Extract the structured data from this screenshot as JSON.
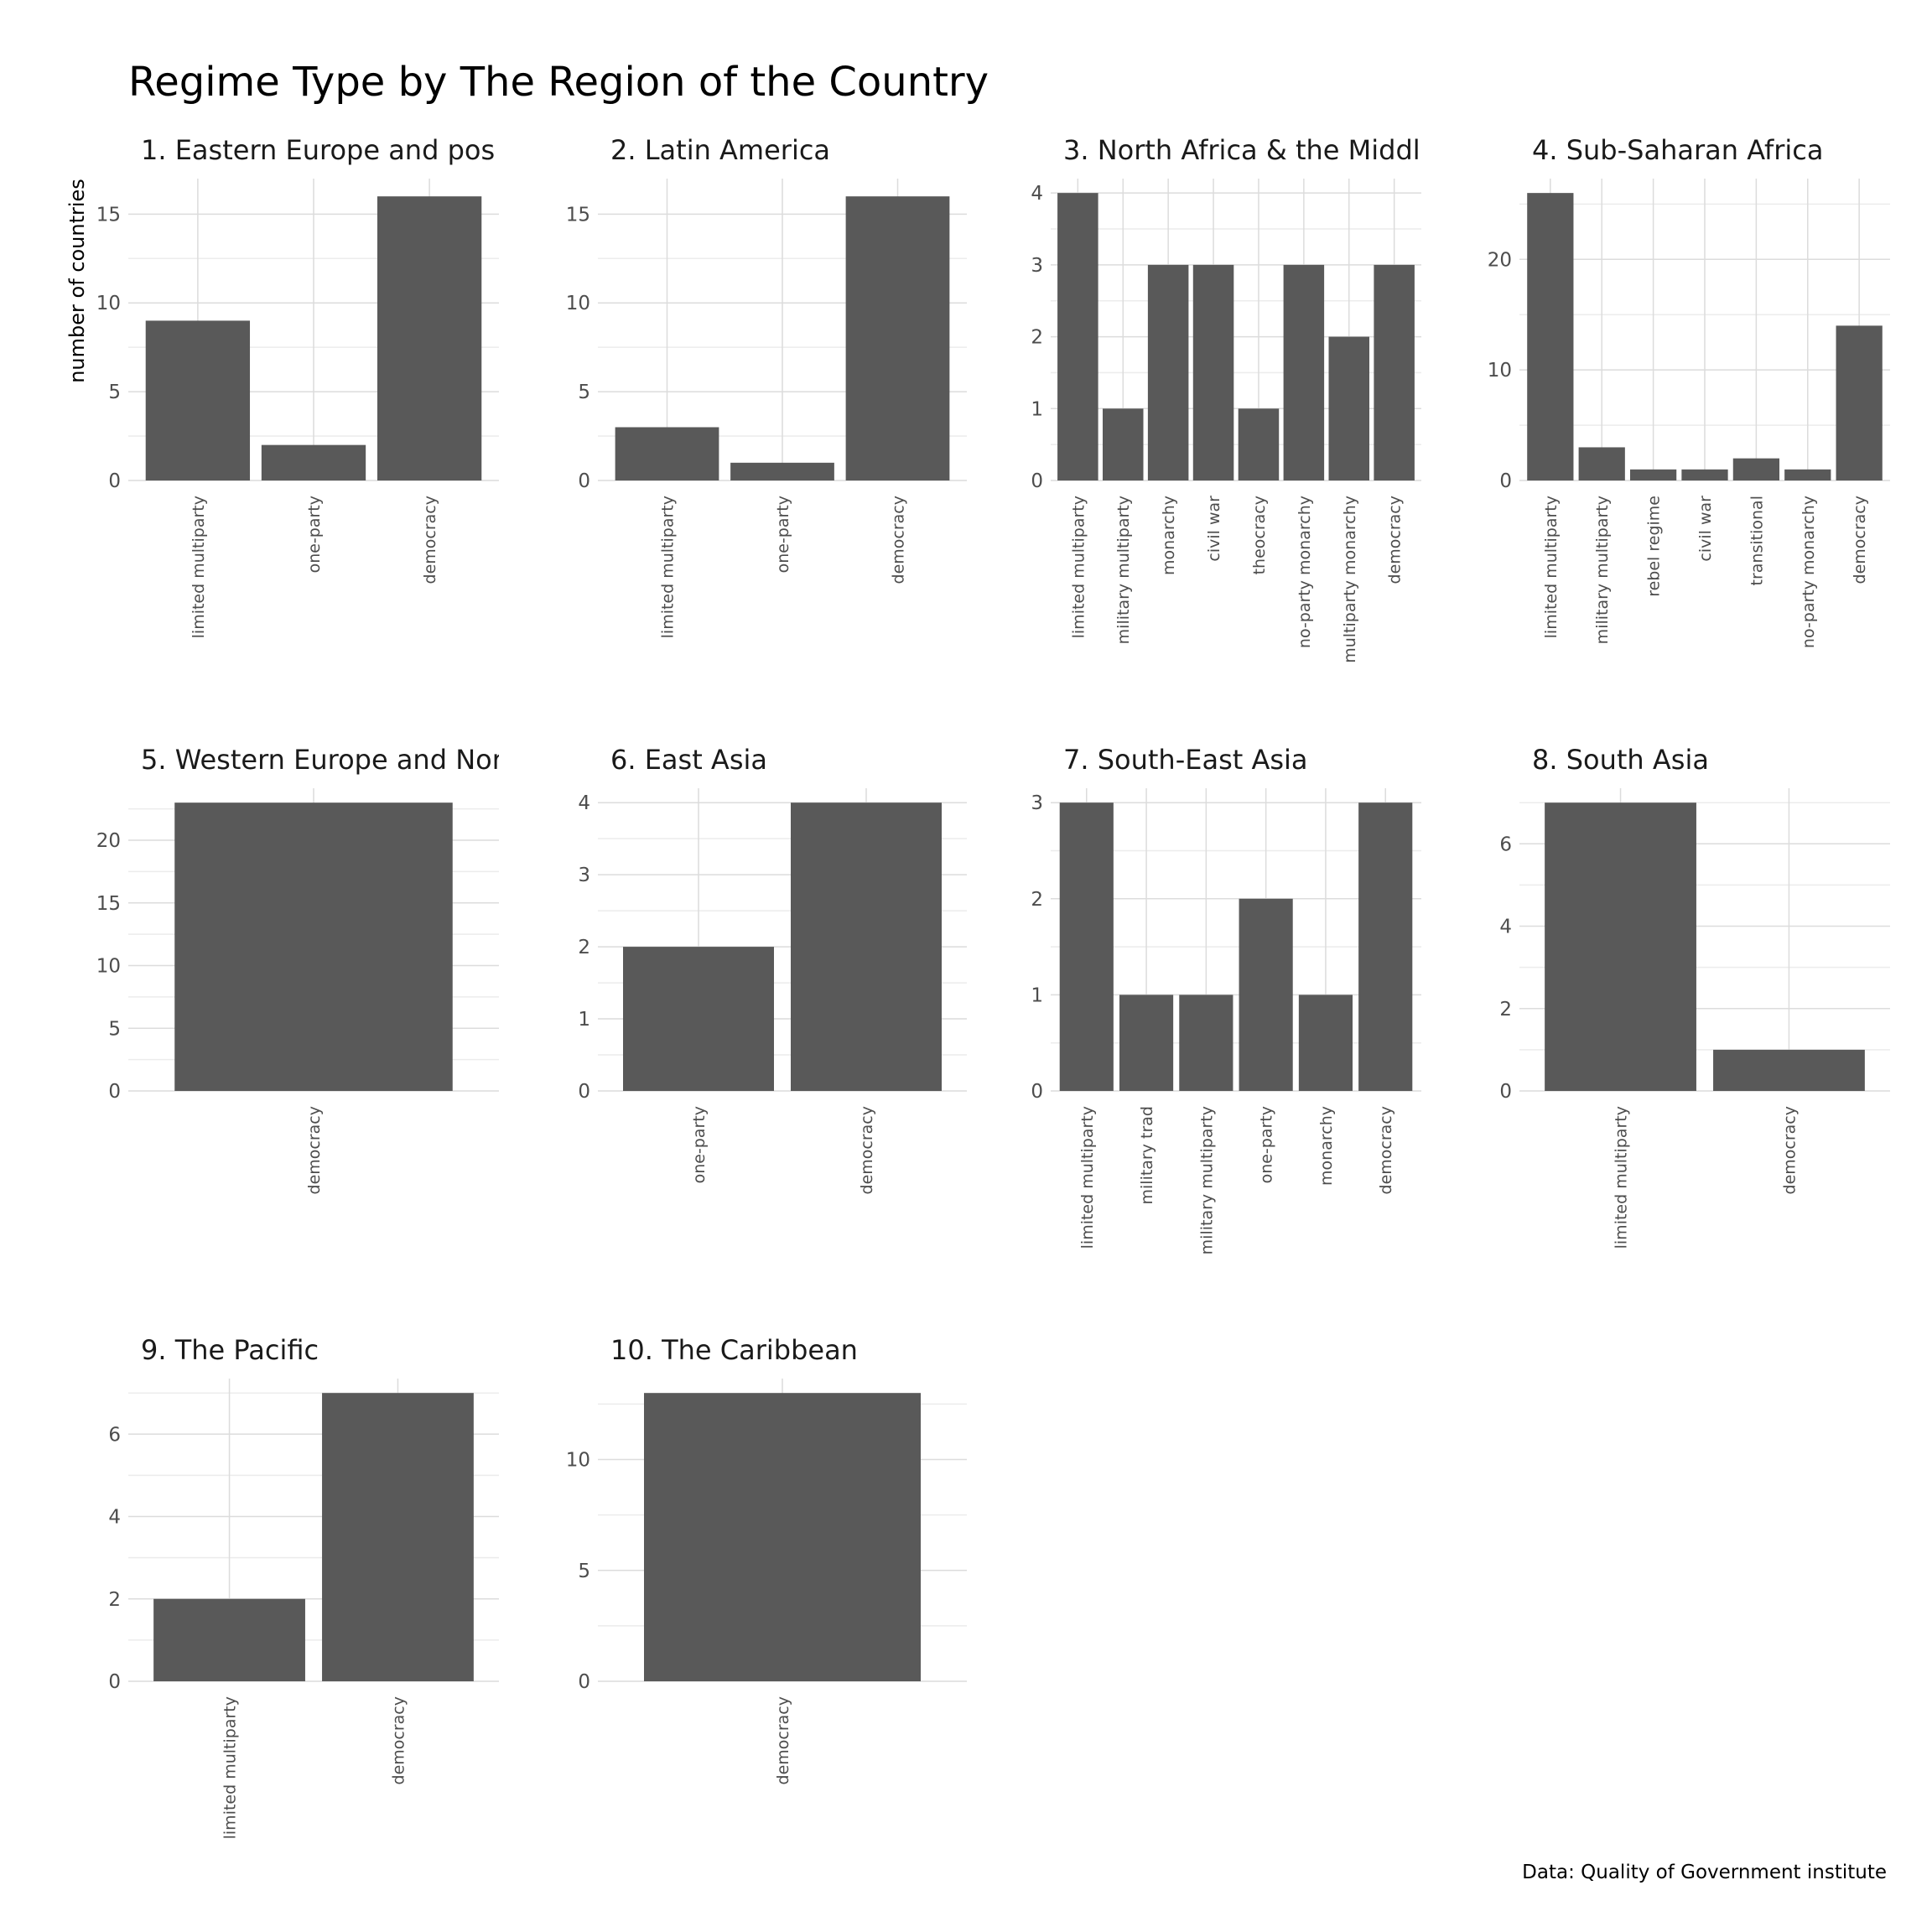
{
  "title": "Regime Type by The Region of the Country",
  "ylabel": "number of countries",
  "caption": "Data: Quality of Government institute",
  "colors": {
    "bar": "#595959",
    "grid": "#dcdcdc",
    "axis_text": "#4d4d4d",
    "text": "#1a1a1a"
  },
  "chart_data": [
    {
      "type": "bar",
      "title": "1. Eastern Europe and pos",
      "categories": [
        "limited multiparty",
        "one-party",
        "democracy"
      ],
      "values": [
        9,
        2,
        16
      ],
      "ylim": [
        0,
        17
      ],
      "yticks": [
        0,
        5,
        10,
        15
      ],
      "grid": true
    },
    {
      "type": "bar",
      "title": "2. Latin America",
      "categories": [
        "limited multiparty",
        "one-party",
        "democracy"
      ],
      "values": [
        3,
        1,
        16
      ],
      "ylim": [
        0,
        17
      ],
      "yticks": [
        0,
        5,
        10,
        15
      ],
      "grid": true
    },
    {
      "type": "bar",
      "title": "3. North Africa & the Middl",
      "categories": [
        "limited multiparty",
        "military multiparty",
        "monarchy",
        "civil war",
        "theocracy",
        "no-party monarchy",
        "multiparty monarchy",
        "democracy"
      ],
      "values": [
        4,
        1,
        3,
        3,
        1,
        3,
        2,
        3
      ],
      "ylim": [
        0,
        4.2
      ],
      "yticks": [
        0,
        1,
        2,
        3,
        4
      ],
      "grid": true
    },
    {
      "type": "bar",
      "title": "4. Sub-Saharan Africa",
      "categories": [
        "limited multiparty",
        "military multiparty",
        "rebel regime",
        "civil war",
        "transitional",
        "no-party monarchy",
        "democracy"
      ],
      "values": [
        26,
        3,
        1,
        1,
        2,
        1,
        14
      ],
      "ylim": [
        0,
        27.3
      ],
      "yticks": [
        0,
        10,
        20
      ],
      "grid": true
    },
    {
      "type": "bar",
      "title": "5. Western Europe and Nor",
      "categories": [
        "democracy"
      ],
      "values": [
        23
      ],
      "ylim": [
        0,
        24.15
      ],
      "yticks": [
        0,
        5,
        10,
        15,
        20
      ],
      "grid": true
    },
    {
      "type": "bar",
      "title": "6. East Asia",
      "categories": [
        "one-party",
        "democracy"
      ],
      "values": [
        2,
        4
      ],
      "ylim": [
        0,
        4.2
      ],
      "yticks": [
        0,
        1,
        2,
        3,
        4
      ],
      "grid": true
    },
    {
      "type": "bar",
      "title": "7. South-East Asia",
      "categories": [
        "limited multiparty",
        "military trad",
        "military multiparty",
        "one-party",
        "monarchy",
        "democracy"
      ],
      "values": [
        3,
        1,
        1,
        2,
        1,
        3
      ],
      "ylim": [
        0,
        3.15
      ],
      "yticks": [
        0,
        1,
        2,
        3
      ],
      "grid": true
    },
    {
      "type": "bar",
      "title": "8. South Asia",
      "categories": [
        "limited multiparty",
        "democracy"
      ],
      "values": [
        7,
        1
      ],
      "ylim": [
        0,
        7.35
      ],
      "yticks": [
        0,
        2,
        4,
        6
      ],
      "grid": true
    },
    {
      "type": "bar",
      "title": "9. The Pacific",
      "categories": [
        "limited multiparty",
        "democracy"
      ],
      "values": [
        2,
        7
      ],
      "ylim": [
        0,
        7.35
      ],
      "yticks": [
        0,
        2,
        4,
        6
      ],
      "grid": true
    },
    {
      "type": "bar",
      "title": "10. The Caribbean",
      "categories": [
        "democracy"
      ],
      "values": [
        13
      ],
      "ylim": [
        0,
        13.65
      ],
      "yticks": [
        0,
        5,
        10
      ],
      "grid": true
    }
  ]
}
